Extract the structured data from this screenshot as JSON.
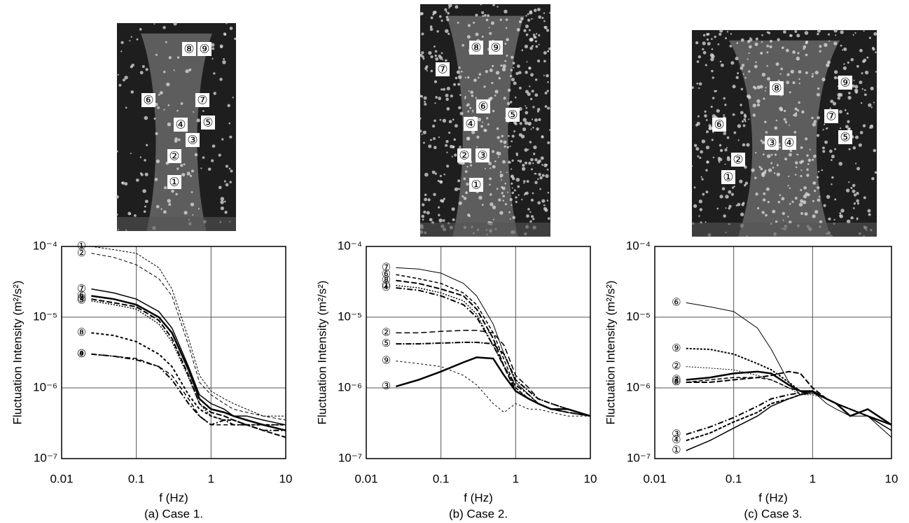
{
  "chart_data": [
    {
      "type": "line",
      "title": "(a) Case 1.",
      "xlabel": "f (Hz)",
      "ylabel": "Fluctuation Intensity (m²/s²)",
      "log_x": true,
      "log_y": true,
      "grid": true,
      "xlim": [
        0.01,
        10
      ],
      "ylim": [
        1e-07,
        0.0001
      ],
      "xticks": [
        0.01,
        0.1,
        1,
        10
      ],
      "yticks": [
        {
          "value": 1e-07,
          "label": "10⁻⁷"
        },
        {
          "value": 1e-06,
          "label": "10⁻⁶"
        },
        {
          "value": 1e-05,
          "label": "10⁻⁵"
        },
        {
          "value": 0.0001,
          "label": "10⁻⁴"
        }
      ],
      "photo_labels": [
        "⑧",
        "⑨",
        "⑥",
        "⑦",
        "④",
        "⑤",
        "③",
        "②",
        "①"
      ],
      "x": [
        0.025,
        0.05,
        0.1,
        0.2,
        0.3,
        0.5,
        0.7,
        1,
        1.5,
        2,
        3,
        5,
        10
      ],
      "series": [
        {
          "name": "①",
          "color": "#000",
          "dash": "3 2",
          "width": 1,
          "values": [
            0.0001,
            9e-05,
            8e-05,
            5e-05,
            2.5e-05,
            5e-06,
            1.5e-06,
            9e-07,
            7e-07,
            6e-07,
            5e-07,
            4e-07,
            4e-07
          ]
        },
        {
          "name": "②",
          "color": "#000",
          "dash": "5 3",
          "width": 1,
          "values": [
            8e-05,
            7e-05,
            5.5e-05,
            3.5e-05,
            2e-05,
            4e-06,
            1.2e-06,
            8e-07,
            6e-07,
            5e-07,
            4.5e-07,
            4e-07,
            3.5e-07
          ]
        },
        {
          "name": "⑦",
          "color": "#000",
          "dash": "",
          "width": 1.5,
          "values": [
            2.5e-05,
            2.2e-05,
            1.8e-05,
            1.2e-05,
            7e-06,
            2e-06,
            8e-07,
            6e-07,
            5e-07,
            4e-07,
            4e-07,
            3.5e-07,
            3e-07
          ]
        },
        {
          "name": "⑥",
          "color": "#000",
          "dash": "",
          "width": 2.5,
          "values": [
            2e-05,
            1.8e-05,
            1.5e-05,
            1e-05,
            6e-06,
            1.8e-06,
            7e-07,
            5e-07,
            4.5e-07,
            4e-07,
            3.5e-07,
            3e-07,
            2.5e-07
          ]
        },
        {
          "name": "③",
          "color": "#000",
          "dash": "8 3",
          "width": 2,
          "values": [
            1.8e-05,
            1.6e-05,
            1.4e-05,
            9e-06,
            5e-06,
            1.5e-06,
            6e-07,
            4.5e-07,
            4e-07,
            3.5e-07,
            3e-07,
            2.5e-07,
            2e-07
          ]
        },
        {
          "name": "⑤",
          "color": "#000",
          "dash": "2 2",
          "width": 1.5,
          "values": [
            1.7e-05,
            1.5e-05,
            1.3e-05,
            8e-06,
            4.5e-06,
            1.4e-06,
            6e-07,
            4e-07,
            3.5e-07,
            3.5e-07,
            3e-07,
            3e-07,
            2.5e-07
          ]
        },
        {
          "name": "⑧",
          "color": "#000",
          "dash": "4 3",
          "width": 2,
          "values": [
            6e-06,
            5.5e-06,
            4.5e-06,
            3e-06,
            2e-06,
            8e-07,
            5e-07,
            4e-07,
            3.5e-07,
            3.5e-07,
            3e-07,
            3e-07,
            3e-07
          ]
        },
        {
          "name": "④",
          "color": "#000",
          "dash": "8 3 2 3",
          "width": 2,
          "values": [
            3e-06,
            2.8e-06,
            2.5e-06,
            2e-06,
            1.3e-06,
            6e-07,
            4e-07,
            3e-07,
            3.5e-07,
            3e-07,
            3e-07,
            2.5e-07,
            2.5e-07
          ]
        },
        {
          "name": "⑨",
          "color": "#000",
          "dash": "6 4",
          "width": 1.5,
          "values": [
            3e-06,
            2.8e-06,
            2.6e-06,
            2e-06,
            1.5e-06,
            7e-07,
            4e-07,
            3e-07,
            3e-07,
            3e-07,
            3e-07,
            3e-07,
            3e-07
          ]
        }
      ]
    },
    {
      "type": "line",
      "title": "(b) Case 2.",
      "xlabel": "f (Hz)",
      "ylabel": "Fluctuation Intensity (m²/s²)",
      "log_x": true,
      "log_y": true,
      "grid": true,
      "xlim": [
        0.01,
        10
      ],
      "ylim": [
        1e-07,
        0.0001
      ],
      "xticks": [
        0.01,
        0.1,
        1,
        10
      ],
      "yticks": [
        {
          "value": 1e-07,
          "label": "10⁻⁷"
        },
        {
          "value": 1e-06,
          "label": "10⁻⁶"
        },
        {
          "value": 1e-05,
          "label": "10⁻⁵"
        },
        {
          "value": 0.0001,
          "label": "10⁻⁴"
        }
      ],
      "photo_labels": [
        "⑧",
        "⑨",
        "⑦",
        "⑥",
        "⑤",
        "④",
        "②",
        "③",
        "①"
      ],
      "x": [
        0.025,
        0.05,
        0.1,
        0.2,
        0.3,
        0.5,
        0.7,
        1,
        1.5,
        2,
        3,
        5,
        10
      ],
      "series": [
        {
          "name": "⑦",
          "color": "#000",
          "dash": "",
          "width": 1,
          "values": [
            5e-05,
            4.8e-05,
            4.2e-05,
            3e-05,
            2e-05,
            8e-06,
            3e-06,
            1.2e-06,
            8e-07,
            6e-07,
            5e-07,
            4.5e-07,
            4e-07
          ]
        },
        {
          "name": "⑥",
          "color": "#000",
          "dash": "5 3",
          "width": 1.5,
          "values": [
            4e-05,
            3.5e-05,
            3e-05,
            2.2e-05,
            1.5e-05,
            6e-06,
            2.5e-06,
            1e-06,
            7e-07,
            6e-07,
            5e-07,
            4.5e-07,
            4e-07
          ]
        },
        {
          "name": "⑧",
          "color": "#000",
          "dash": "8 3",
          "width": 2,
          "values": [
            3.3e-05,
            3e-05,
            2.5e-05,
            2e-05,
            1.3e-05,
            5e-06,
            2e-06,
            9e-07,
            7e-07,
            6e-07,
            5e-07,
            4.5e-07,
            4e-07
          ]
        },
        {
          "name": "①",
          "color": "#000",
          "dash": "2 2",
          "width": 1.5,
          "values": [
            2.8e-05,
            2.6e-05,
            2.2e-05,
            1.7e-05,
            1.1e-05,
            4e-06,
            2e-06,
            1e-06,
            7e-07,
            6e-07,
            5e-07,
            4.5e-07,
            4e-07
          ]
        },
        {
          "name": "④",
          "color": "#000",
          "dash": "8 3 2 3",
          "width": 2,
          "values": [
            2.6e-05,
            2.4e-05,
            2e-05,
            1.5e-05,
            1e-05,
            4e-06,
            2e-06,
            1.1e-06,
            8e-07,
            6e-07,
            5e-07,
            5e-07,
            4e-07
          ]
        },
        {
          "name": "②",
          "color": "#000",
          "dash": "8 4",
          "width": 1.5,
          "values": [
            6e-06,
            6e-06,
            6.3e-06,
            6.5e-06,
            6.5e-06,
            6e-06,
            4e-06,
            1.5e-06,
            1e-06,
            7e-07,
            6e-07,
            5e-07,
            4e-07
          ]
        },
        {
          "name": "⑤",
          "color": "#000",
          "dash": "8 2 2 2",
          "width": 2,
          "values": [
            4.2e-06,
            4.2e-06,
            4.3e-06,
            4.4e-06,
            4.4e-06,
            4.2e-06,
            3e-06,
            1.3e-06,
            9e-07,
            7e-07,
            6e-07,
            5e-07,
            4e-07
          ]
        },
        {
          "name": "⑨",
          "color": "#000",
          "dash": "3 3",
          "width": 1,
          "values": [
            2.4e-06,
            2.2e-06,
            2e-06,
            1.5e-06,
            1.1e-06,
            6e-07,
            4.5e-07,
            6e-07,
            5e-07,
            5e-07,
            4.5e-07,
            4e-07,
            4e-07
          ]
        },
        {
          "name": "③",
          "color": "#000",
          "dash": "",
          "width": 2.5,
          "values": [
            1.05e-06,
            1.3e-06,
            1.7e-06,
            2.3e-06,
            2.7e-06,
            2.6e-06,
            1.5e-06,
            9e-07,
            7e-07,
            6e-07,
            5e-07,
            5e-07,
            4e-07
          ]
        }
      ]
    },
    {
      "type": "line",
      "title": "(c) Case 3.",
      "xlabel": "f (Hz)",
      "ylabel": "Fluctuation Intensity (m²/s²)",
      "log_x": true,
      "log_y": true,
      "grid": true,
      "xlim": [
        0.01,
        10
      ],
      "ylim": [
        1e-07,
        0.0001
      ],
      "xticks": [
        0.01,
        0.1,
        1,
        10
      ],
      "yticks": [
        {
          "value": 1e-07,
          "label": "10⁻⁷"
        },
        {
          "value": 1e-06,
          "label": "10⁻⁶"
        },
        {
          "value": 1e-05,
          "label": "10⁻⁵"
        },
        {
          "value": 0.0001,
          "label": "10⁻⁴"
        }
      ],
      "photo_labels": [
        "⑧",
        "⑨",
        "⑦",
        "⑤",
        "⑥",
        "③",
        "④",
        "②",
        "①"
      ],
      "x": [
        0.025,
        0.05,
        0.1,
        0.2,
        0.3,
        0.5,
        0.7,
        1,
        1.5,
        2,
        3,
        5,
        10
      ],
      "series": [
        {
          "name": "⑥",
          "color": "#000",
          "dash": "",
          "width": 1,
          "values": [
            1.6e-05,
            1.4e-05,
            1.2e-05,
            7e-06,
            3.5e-06,
            1.2e-06,
            8e-07,
            9e-07,
            6e-07,
            5e-07,
            4e-07,
            4e-07,
            2e-07
          ]
        },
        {
          "name": "⑨",
          "color": "#000",
          "dash": "3 2",
          "width": 2,
          "values": [
            3.6e-06,
            3.5e-06,
            3e-06,
            2.2e-06,
            1.8e-06,
            1.2e-06,
            9e-07,
            9e-07,
            7e-07,
            6e-07,
            5e-07,
            4e-07,
            3e-07
          ]
        },
        {
          "name": "②",
          "color": "#000",
          "dash": "2 2",
          "width": 1,
          "values": [
            2e-06,
            1.9e-06,
            1.8e-06,
            1.5e-06,
            1.3e-06,
            1e-06,
            8e-07,
            8e-07,
            7e-07,
            6e-07,
            5e-07,
            4e-07,
            3e-07
          ]
        },
        {
          "name": "⑤",
          "color": "#000",
          "dash": "8 3",
          "width": 2,
          "values": [
            1.2e-06,
            1.2e-06,
            1.3e-06,
            1.4e-06,
            1.5e-06,
            1.7e-06,
            1.6e-06,
            1e-06,
            7e-07,
            6e-07,
            5e-07,
            4e-07,
            3e-07
          ]
        },
        {
          "name": "⑦",
          "color": "#000",
          "dash": "",
          "width": 2.5,
          "values": [
            1.3e-06,
            1.4e-06,
            1.6e-06,
            1.7e-06,
            1.6e-06,
            1.1e-06,
            9e-07,
            9e-07,
            7e-07,
            6e-07,
            4e-07,
            5e-07,
            3e-07
          ]
        },
        {
          "name": "⑧",
          "color": "#000",
          "dash": "6 3",
          "width": 1.5,
          "values": [
            1.2e-06,
            1.3e-06,
            1.4e-06,
            1.4e-06,
            1.3e-06,
            1e-06,
            9e-07,
            9e-07,
            7e-07,
            6e-07,
            5e-07,
            4e-07,
            3e-07
          ]
        },
        {
          "name": "③",
          "color": "#000",
          "dash": "8 3 2 3",
          "width": 2,
          "values": [
            2.2e-07,
            2.8e-07,
            3.8e-07,
            5.5e-07,
            7e-07,
            8e-07,
            8.5e-07,
            9e-07,
            7e-07,
            6e-07,
            5e-07,
            4e-07,
            3e-07
          ]
        },
        {
          "name": "①",
          "color": "#000",
          "dash": "",
          "width": 1.5,
          "values": [
            1.3e-07,
            1.8e-07,
            2.7e-07,
            4e-07,
            5.5e-07,
            7e-07,
            8e-07,
            8.5e-07,
            7e-07,
            6e-07,
            5e-07,
            4e-07,
            2.5e-07
          ]
        },
        {
          "name": "④",
          "color": "#000",
          "dash": "5 2",
          "width": 2,
          "values": [
            1.8e-07,
            2.3e-07,
            3.3e-07,
            4.5e-07,
            6e-07,
            7e-07,
            8e-07,
            9e-07,
            7e-07,
            6e-07,
            5e-07,
            4e-07,
            3e-07
          ]
        }
      ]
    }
  ]
}
